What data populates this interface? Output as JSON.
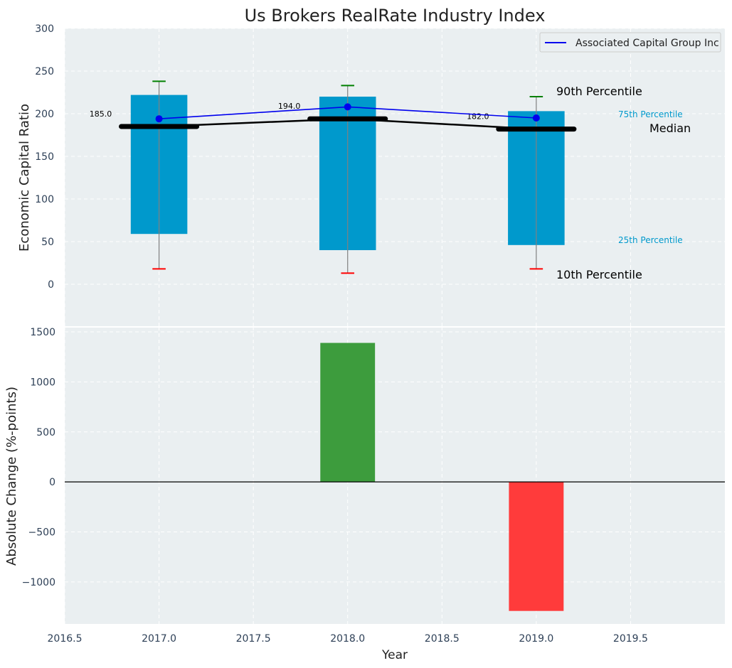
{
  "chart_data": {
    "title": "Us Brokers RealRate Industry Index",
    "type": "boxplot_with_bar_subplot",
    "x_tick_labels": [
      "2016.5",
      "2017.0",
      "2017.5",
      "2018.0",
      "2018.5",
      "2019.0",
      "2019.5"
    ],
    "x_ticks": [
      2016.5,
      2017.0,
      2017.5,
      2018.0,
      2018.5,
      2019.0,
      2019.5
    ],
    "xlim": [
      2016.5,
      2020.0
    ],
    "xlabel": "Year",
    "grid": true,
    "top_panel": {
      "ylabel": "Economic Capital Ratio",
      "ylim": [
        -50,
        300
      ],
      "y_ticks": [
        0,
        50,
        100,
        150,
        200,
        250,
        300
      ],
      "y_tick_labels": [
        "0",
        "50",
        "100",
        "150",
        "200",
        "250",
        "300"
      ],
      "years": [
        2017,
        2018,
        2019
      ],
      "p10": [
        18,
        13,
        18
      ],
      "p25": [
        59,
        40,
        46
      ],
      "median": [
        185,
        194,
        182
      ],
      "p75": [
        222,
        220,
        203
      ],
      "p90": [
        238,
        233,
        220
      ],
      "median_labels": [
        "185.0",
        "194.0",
        "182.0"
      ],
      "company_series": {
        "name": "Associated Capital Group Inc",
        "values": [
          194,
          208,
          195
        ]
      },
      "legend_position": "upper right",
      "annotations": {
        "p90": "90th Percentile",
        "p75": "75th Percentile",
        "median": "Median",
        "p25": "25th Percentile",
        "p10": "10th Percentile"
      }
    },
    "bottom_panel": {
      "type": "bar",
      "ylabel": "Absolute Change (%-points)",
      "ylim": [
        -1420,
        1550
      ],
      "y_ticks": [
        -1000,
        -500,
        0,
        500,
        1000,
        1500
      ],
      "y_tick_labels": [
        "−1000",
        "−500",
        "0",
        "500",
        "1000",
        "1500"
      ],
      "years": [
        2018,
        2019
      ],
      "values": [
        1390,
        -1290
      ]
    },
    "colors": {
      "panel_bg": "#eaeff1",
      "box": "#0099cc",
      "p90_cap": "#008000",
      "p10_cap": "#ff0000",
      "whisker": "#808080",
      "median": "#000000",
      "company_line": "#0000ee",
      "positive_bar": "#3d9c3d",
      "negative_bar": "#ff3b3b",
      "annotation_blue": "#0099cc",
      "tick_text": "#2e4057"
    }
  }
}
